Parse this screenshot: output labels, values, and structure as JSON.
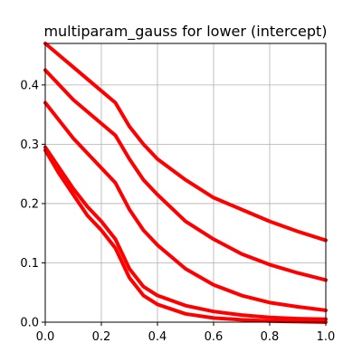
{
  "chart_data": {
    "type": "line",
    "title": "multiparam_gauss for lower (intercept)",
    "xlabel": "",
    "ylabel": "",
    "xlim": [
      0.0,
      1.0
    ],
    "ylim": [
      0.0,
      0.47
    ],
    "xticks": [
      0.0,
      0.2,
      0.4,
      0.6,
      0.8,
      1.0
    ],
    "yticks": [
      0.0,
      0.1,
      0.2,
      0.3,
      0.4
    ],
    "xtick_labels": [
      "0.0",
      "0.2",
      "0.4",
      "0.6",
      "0.8",
      "1.0"
    ],
    "ytick_labels": [
      "0.0",
      "0.1",
      "0.2",
      "0.3",
      "0.4"
    ],
    "grid": true,
    "legend": "none",
    "line_color": "#ff0000",
    "series": [
      {
        "x": [
          0.0,
          0.05,
          0.1,
          0.15,
          0.2,
          0.25,
          0.3,
          0.35,
          0.4,
          0.5,
          0.6,
          0.7,
          0.8,
          0.9,
          1.0
        ],
        "values": [
          0.47,
          0.45,
          0.43,
          0.41,
          0.39,
          0.37,
          0.33,
          0.3,
          0.275,
          0.24,
          0.21,
          0.19,
          0.17,
          0.153,
          0.138
        ]
      },
      {
        "x": [
          0.0,
          0.05,
          0.1,
          0.15,
          0.2,
          0.25,
          0.3,
          0.35,
          0.4,
          0.5,
          0.6,
          0.7,
          0.8,
          0.9,
          1.0
        ],
        "values": [
          0.425,
          0.4,
          0.375,
          0.355,
          0.335,
          0.315,
          0.275,
          0.24,
          0.215,
          0.17,
          0.14,
          0.115,
          0.097,
          0.083,
          0.071
        ]
      },
      {
        "x": [
          0.0,
          0.05,
          0.1,
          0.15,
          0.2,
          0.25,
          0.3,
          0.35,
          0.4,
          0.5,
          0.6,
          0.7,
          0.8,
          0.9,
          1.0
        ],
        "values": [
          0.37,
          0.34,
          0.31,
          0.285,
          0.26,
          0.235,
          0.19,
          0.155,
          0.13,
          0.09,
          0.063,
          0.045,
          0.033,
          0.026,
          0.02
        ]
      },
      {
        "x": [
          0.0,
          0.05,
          0.1,
          0.15,
          0.2,
          0.25,
          0.3,
          0.35,
          0.4,
          0.5,
          0.6,
          0.7,
          0.8,
          0.9,
          1.0
        ],
        "values": [
          0.295,
          0.26,
          0.225,
          0.195,
          0.17,
          0.14,
          0.09,
          0.06,
          0.045,
          0.028,
          0.018,
          0.012,
          0.008,
          0.006,
          0.005
        ]
      },
      {
        "x": [
          0.0,
          0.05,
          0.1,
          0.15,
          0.2,
          0.25,
          0.3,
          0.35,
          0.4,
          0.5,
          0.6,
          0.7,
          0.8,
          0.9,
          1.0
        ],
        "values": [
          0.29,
          0.25,
          0.215,
          0.18,
          0.155,
          0.125,
          0.075,
          0.045,
          0.03,
          0.014,
          0.007,
          0.004,
          0.002,
          0.001,
          0.0
        ]
      }
    ]
  }
}
